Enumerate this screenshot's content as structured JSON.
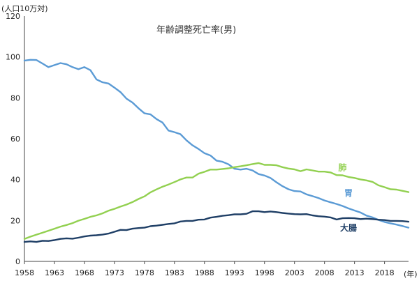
{
  "chart_data": {
    "type": "line",
    "title": "年齢調整死亡率(男)",
    "ylabel": "(人口10万対)",
    "xlabel": "(年)",
    "xlim": [
      1958,
      2022
    ],
    "ylim": [
      0,
      120
    ],
    "x_ticks": [
      1958,
      1963,
      1968,
      1973,
      1978,
      1983,
      1988,
      1993,
      1998,
      2003,
      2008,
      2013,
      2018
    ],
    "y_ticks": [
      0,
      20,
      40,
      60,
      80,
      100,
      120
    ],
    "grid": false,
    "legend": "inline labels",
    "x": [
      1958,
      1959,
      1960,
      1961,
      1962,
      1963,
      1964,
      1965,
      1966,
      1967,
      1968,
      1969,
      1970,
      1971,
      1972,
      1973,
      1974,
      1975,
      1976,
      1977,
      1978,
      1979,
      1980,
      1981,
      1982,
      1983,
      1984,
      1985,
      1986,
      1987,
      1988,
      1989,
      1990,
      1991,
      1992,
      1993,
      1994,
      1995,
      1996,
      1997,
      1998,
      1999,
      2000,
      2001,
      2002,
      2003,
      2004,
      2005,
      2006,
      2007,
      2008,
      2009,
      2010,
      2011,
      2012,
      2013,
      2014,
      2015,
      2016,
      2017,
      2018,
      2019,
      2020,
      2021,
      2022
    ],
    "series": [
      {
        "name": "胃",
        "color": "#5b9bd5",
        "label_x": 2012,
        "label_y": 32,
        "values": [
          98.2,
          98.6,
          98.5,
          96.8,
          95.0,
          96.0,
          97.0,
          96.4,
          95.0,
          94.0,
          95.0,
          93.5,
          89.0,
          87.6,
          87.0,
          85.0,
          82.8,
          79.6,
          77.7,
          74.9,
          72.4,
          71.9,
          69.6,
          67.9,
          64.0,
          63.2,
          62.2,
          59.2,
          56.8,
          55.0,
          52.9,
          51.8,
          49.3,
          48.7,
          47.5,
          45.3,
          44.9,
          45.3,
          44.5,
          42.7,
          42.0,
          40.8,
          38.7,
          36.8,
          35.3,
          34.4,
          34.2,
          32.8,
          31.9,
          31.0,
          29.8,
          28.9,
          28.1,
          27.1,
          25.9,
          24.9,
          23.9,
          22.4,
          21.5,
          20.3,
          19.3,
          18.6,
          18.0,
          17.3,
          16.5
        ]
      },
      {
        "name": "肺",
        "color": "#92d050",
        "label_x": 2011,
        "label_y": 44.5,
        "values": [
          11.0,
          12.1,
          13.1,
          14.0,
          15.0,
          16.0,
          17.0,
          17.8,
          18.7,
          19.9,
          20.8,
          21.8,
          22.5,
          23.5,
          24.8,
          25.7,
          26.8,
          27.8,
          29.0,
          30.5,
          31.8,
          33.8,
          35.2,
          36.5,
          37.6,
          38.8,
          40.1,
          41.0,
          41.0,
          42.9,
          43.8,
          44.9,
          44.9,
          45.2,
          45.5,
          46.1,
          46.5,
          47.0,
          47.6,
          48.1,
          47.2,
          47.2,
          47.0,
          46.1,
          45.4,
          45.0,
          44.1,
          45.0,
          44.5,
          43.9,
          43.9,
          43.5,
          42.2,
          42.1,
          41.3,
          40.8,
          40.1,
          39.6,
          38.9,
          37.2,
          36.3,
          35.3,
          35.1,
          34.5,
          33.9
        ]
      },
      {
        "name": "大腸",
        "color": "#1f3f66",
        "label_x": 2012,
        "label_y": 15,
        "values": [
          9.5,
          9.8,
          9.5,
          10.1,
          10.0,
          10.4,
          11.0,
          11.3,
          11.1,
          11.6,
          12.2,
          12.6,
          12.8,
          13.1,
          13.6,
          14.5,
          15.4,
          15.3,
          16.0,
          16.3,
          16.5,
          17.2,
          17.5,
          17.9,
          18.3,
          18.6,
          19.5,
          19.8,
          19.8,
          20.4,
          20.5,
          21.4,
          21.8,
          22.3,
          22.6,
          23.0,
          23.0,
          23.3,
          24.5,
          24.5,
          24.1,
          24.4,
          24.1,
          23.7,
          23.4,
          23.1,
          23.0,
          23.1,
          22.5,
          22.1,
          21.9,
          21.5,
          20.5,
          21.1,
          21.2,
          21.1,
          20.7,
          20.9,
          20.7,
          20.4,
          20.2,
          19.8,
          19.8,
          19.7,
          19.4
        ]
      }
    ]
  }
}
